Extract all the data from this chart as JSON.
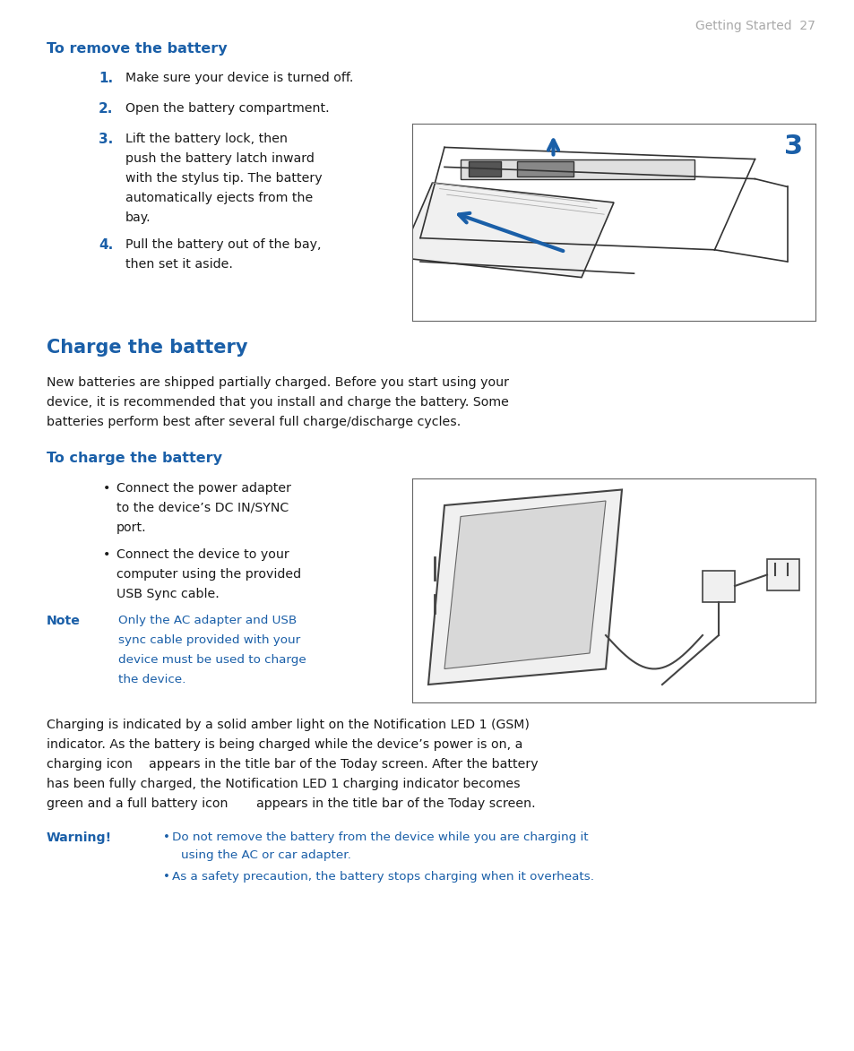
{
  "bg_color": "#ffffff",
  "page_header": "Getting Started  27",
  "header_color": "#aaaaaa",
  "section1_title": "To remove the battery",
  "blue_color": "#1a5fa8",
  "step_nums": [
    "1.",
    "2.",
    "3.",
    "4."
  ],
  "step1": "Make sure your device is turned off.",
  "step2": "Open the battery compartment.",
  "step3_lines": [
    "Lift the battery lock, then",
    "push the battery latch inward",
    "with the stylus tip. The battery",
    "automatically ejects from the",
    "bay."
  ],
  "step4_lines": [
    "Pull the battery out of the bay,",
    "then set it aside."
  ],
  "section2_title": "Charge the battery",
  "section2_body_lines": [
    "New batteries are shipped partially charged. Before you start using your",
    "device, it is recommended that you install and charge the battery. Some",
    "batteries perform best after several full charge/discharge cycles."
  ],
  "section3_title": "To charge the battery",
  "bullet1_lines": [
    "Connect the power adapter",
    "to the device’s DC IN/SYNC",
    "port."
  ],
  "bullet2_lines": [
    "Connect the device to your",
    "computer using the provided",
    "USB Sync cable."
  ],
  "note_label": "Note",
  "note_lines": [
    "Only the AC adapter and USB",
    "sync cable provided with your",
    "device must be used to charge",
    "the device."
  ],
  "body_para_lines": [
    "Charging is indicated by a solid amber light on the Notification LED 1 (GSM)",
    "indicator. As the battery is being charged while the device’s power is on, a",
    "charging icon    appears in the title bar of the Today screen. After the battery",
    "has been fully charged, the Notification LED 1 charging indicator becomes",
    "green and a full battery icon       appears in the title bar of the Today screen."
  ],
  "warning_label": "Warning!",
  "warning_line1a": "Do not remove the battery from the device while you are charging it",
  "warning_line1b": "using the AC or car adapter.",
  "warning_line2": "As a safety precaution, the battery stops charging when it overheats.",
  "text_color": "#1a1a1a"
}
